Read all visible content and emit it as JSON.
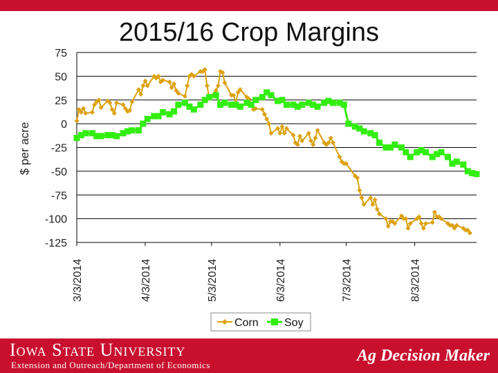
{
  "chart_data": {
    "type": "line",
    "title": "2015/16 Crop Margins",
    "ylabel": "$ per acre",
    "xlabel": "",
    "ylim": [
      -125,
      75
    ],
    "yticks": [
      75,
      50,
      25,
      0,
      -25,
      -50,
      -75,
      -100,
      -125
    ],
    "x_tick_labels": [
      "3/3/2014",
      "4/3/2014",
      "5/3/2014",
      "6/3/2014",
      "7/3/2014",
      "8/3/2014"
    ],
    "x_tick_dates": [
      "2014-03-03",
      "2014-04-03",
      "2014-05-03",
      "2014-06-03",
      "2014-07-03",
      "2014-08-03"
    ],
    "x_range": [
      "2014-03-03",
      "2014-08-31"
    ],
    "grid": "horizontal",
    "legend_position": "bottom",
    "series": [
      {
        "name": "Corn",
        "color": "#dca10f",
        "marker": "diamond",
        "points": [
          [
            "2014-03-03",
            3
          ],
          [
            "2014-03-04",
            15
          ],
          [
            "2014-03-05",
            12
          ],
          [
            "2014-03-06",
            16
          ],
          [
            "2014-03-07",
            11
          ],
          [
            "2014-03-10",
            12
          ],
          [
            "2014-03-11",
            20
          ],
          [
            "2014-03-12",
            23
          ],
          [
            "2014-03-13",
            25
          ],
          [
            "2014-03-14",
            17
          ],
          [
            "2014-03-17",
            24
          ],
          [
            "2014-03-18",
            22
          ],
          [
            "2014-03-19",
            15
          ],
          [
            "2014-03-20",
            11
          ],
          [
            "2014-03-21",
            22
          ],
          [
            "2014-03-24",
            20
          ],
          [
            "2014-03-25",
            16
          ],
          [
            "2014-03-26",
            13
          ],
          [
            "2014-03-27",
            14
          ],
          [
            "2014-03-28",
            23
          ],
          [
            "2014-03-31",
            36
          ],
          [
            "2014-04-01",
            31
          ],
          [
            "2014-04-02",
            40
          ],
          [
            "2014-04-03",
            45
          ],
          [
            "2014-04-04",
            40
          ],
          [
            "2014-04-07",
            50
          ],
          [
            "2014-04-08",
            48
          ],
          [
            "2014-04-09",
            50
          ],
          [
            "2014-04-10",
            44
          ],
          [
            "2014-04-11",
            46
          ],
          [
            "2014-04-14",
            44
          ],
          [
            "2014-04-15",
            38
          ],
          [
            "2014-04-16",
            42
          ],
          [
            "2014-04-17",
            35
          ],
          [
            "2014-04-18",
            32
          ],
          [
            "2014-04-21",
            29
          ],
          [
            "2014-04-22",
            40
          ],
          [
            "2014-04-23",
            50
          ],
          [
            "2014-04-24",
            52
          ],
          [
            "2014-04-25",
            50
          ],
          [
            "2014-04-28",
            55
          ],
          [
            "2014-04-29",
            55
          ],
          [
            "2014-04-30",
            57
          ],
          [
            "2014-05-01",
            40
          ],
          [
            "2014-05-02",
            27
          ],
          [
            "2014-05-05",
            35
          ],
          [
            "2014-05-06",
            40
          ],
          [
            "2014-05-07",
            55
          ],
          [
            "2014-05-08",
            54
          ],
          [
            "2014-05-09",
            43
          ],
          [
            "2014-05-12",
            30
          ],
          [
            "2014-05-13",
            30
          ],
          [
            "2014-05-14",
            22
          ],
          [
            "2014-05-15",
            33
          ],
          [
            "2014-05-16",
            36
          ],
          [
            "2014-05-19",
            28
          ],
          [
            "2014-05-20",
            26
          ],
          [
            "2014-05-21",
            20
          ],
          [
            "2014-05-22",
            15
          ],
          [
            "2014-05-23",
            16
          ],
          [
            "2014-05-26",
            15
          ],
          [
            "2014-05-27",
            10
          ],
          [
            "2014-05-28",
            5
          ],
          [
            "2014-05-29",
            0
          ],
          [
            "2014-05-30",
            -10
          ],
          [
            "2014-06-02",
            -5
          ],
          [
            "2014-06-03",
            -10
          ],
          [
            "2014-06-04",
            -3
          ],
          [
            "2014-06-05",
            -10
          ],
          [
            "2014-06-06",
            -5
          ],
          [
            "2014-06-09",
            -12
          ],
          [
            "2014-06-10",
            -20
          ],
          [
            "2014-06-11",
            -22
          ],
          [
            "2014-06-12",
            -13
          ],
          [
            "2014-06-13",
            -18
          ],
          [
            "2014-06-16",
            -10
          ],
          [
            "2014-06-17",
            -18
          ],
          [
            "2014-06-18",
            -22
          ],
          [
            "2014-06-19",
            -15
          ],
          [
            "2014-06-20",
            -7
          ],
          [
            "2014-06-23",
            -20
          ],
          [
            "2014-06-24",
            -22
          ],
          [
            "2014-06-25",
            -20
          ],
          [
            "2014-06-26",
            -15
          ],
          [
            "2014-06-27",
            -20
          ],
          [
            "2014-06-30",
            -35
          ],
          [
            "2014-07-01",
            -40
          ],
          [
            "2014-07-02",
            -42
          ],
          [
            "2014-07-03",
            -42
          ],
          [
            "2014-07-07",
            -55
          ],
          [
            "2014-07-08",
            -57
          ],
          [
            "2014-07-09",
            -70
          ],
          [
            "2014-07-10",
            -78
          ],
          [
            "2014-07-11",
            -85
          ],
          [
            "2014-07-14",
            -78
          ],
          [
            "2014-07-15",
            -85
          ],
          [
            "2014-07-16",
            -80
          ],
          [
            "2014-07-17",
            -90
          ],
          [
            "2014-07-18",
            -95
          ],
          [
            "2014-07-21",
            -100
          ],
          [
            "2014-07-22",
            -108
          ],
          [
            "2014-07-23",
            -103
          ],
          [
            "2014-07-24",
            -103
          ],
          [
            "2014-07-25",
            -105
          ],
          [
            "2014-07-28",
            -97
          ],
          [
            "2014-07-29",
            -100
          ],
          [
            "2014-07-30",
            -100
          ],
          [
            "2014-07-31",
            -110
          ],
          [
            "2014-08-01",
            -105
          ],
          [
            "2014-08-04",
            -100
          ],
          [
            "2014-08-05",
            -98
          ],
          [
            "2014-08-06",
            -105
          ],
          [
            "2014-08-07",
            -110
          ],
          [
            "2014-08-08",
            -105
          ],
          [
            "2014-08-11",
            -104
          ],
          [
            "2014-08-12",
            -93
          ],
          [
            "2014-08-13",
            -98
          ],
          [
            "2014-08-14",
            -98
          ],
          [
            "2014-08-15",
            -100
          ],
          [
            "2014-08-18",
            -105
          ],
          [
            "2014-08-19",
            -107
          ],
          [
            "2014-08-20",
            -107
          ],
          [
            "2014-08-21",
            -110
          ],
          [
            "2014-08-22",
            -107
          ],
          [
            "2014-08-25",
            -110
          ],
          [
            "2014-08-26",
            -112
          ],
          [
            "2014-08-27",
            -112
          ],
          [
            "2014-08-28",
            -115
          ]
        ]
      },
      {
        "name": "Soy",
        "color": "#33ee11",
        "marker": "square",
        "points": [
          [
            "2014-03-03",
            -15
          ],
          [
            "2014-03-05",
            -12
          ],
          [
            "2014-03-07",
            -10
          ],
          [
            "2014-03-10",
            -10
          ],
          [
            "2014-03-12",
            -13
          ],
          [
            "2014-03-14",
            -13
          ],
          [
            "2014-03-17",
            -12
          ],
          [
            "2014-03-19",
            -12
          ],
          [
            "2014-03-21",
            -13
          ],
          [
            "2014-03-24",
            -10
          ],
          [
            "2014-03-26",
            -8
          ],
          [
            "2014-03-28",
            -7
          ],
          [
            "2014-03-31",
            -7
          ],
          [
            "2014-04-02",
            0
          ],
          [
            "2014-04-04",
            5
          ],
          [
            "2014-04-07",
            8
          ],
          [
            "2014-04-09",
            8
          ],
          [
            "2014-04-11",
            12
          ],
          [
            "2014-04-14",
            10
          ],
          [
            "2014-04-16",
            13
          ],
          [
            "2014-04-18",
            20
          ],
          [
            "2014-04-21",
            22
          ],
          [
            "2014-04-23",
            18
          ],
          [
            "2014-04-25",
            15
          ],
          [
            "2014-04-28",
            20
          ],
          [
            "2014-04-30",
            25
          ],
          [
            "2014-05-02",
            28
          ],
          [
            "2014-05-05",
            30
          ],
          [
            "2014-05-07",
            20
          ],
          [
            "2014-05-09",
            22
          ],
          [
            "2014-05-12",
            20
          ],
          [
            "2014-05-14",
            20
          ],
          [
            "2014-05-16",
            18
          ],
          [
            "2014-05-19",
            22
          ],
          [
            "2014-05-21",
            20
          ],
          [
            "2014-05-23",
            25
          ],
          [
            "2014-05-26",
            28
          ],
          [
            "2014-05-28",
            33
          ],
          [
            "2014-05-30",
            30
          ],
          [
            "2014-06-02",
            24
          ],
          [
            "2014-06-04",
            25
          ],
          [
            "2014-06-06",
            20
          ],
          [
            "2014-06-09",
            20
          ],
          [
            "2014-06-11",
            18
          ],
          [
            "2014-06-13",
            20
          ],
          [
            "2014-06-16",
            22
          ],
          [
            "2014-06-18",
            20
          ],
          [
            "2014-06-20",
            18
          ],
          [
            "2014-06-23",
            22
          ],
          [
            "2014-06-25",
            24
          ],
          [
            "2014-06-27",
            22
          ],
          [
            "2014-06-30",
            22
          ],
          [
            "2014-07-02",
            20
          ],
          [
            "2014-07-04",
            0
          ],
          [
            "2014-07-07",
            -3
          ],
          [
            "2014-07-09",
            -5
          ],
          [
            "2014-07-11",
            -8
          ],
          [
            "2014-07-14",
            -10
          ],
          [
            "2014-07-16",
            -12
          ],
          [
            "2014-07-18",
            -20
          ],
          [
            "2014-07-21",
            -25
          ],
          [
            "2014-07-23",
            -25
          ],
          [
            "2014-07-25",
            -22
          ],
          [
            "2014-07-28",
            -25
          ],
          [
            "2014-07-30",
            -30
          ],
          [
            "2014-08-01",
            -35
          ],
          [
            "2014-08-04",
            -30
          ],
          [
            "2014-08-06",
            -28
          ],
          [
            "2014-08-08",
            -30
          ],
          [
            "2014-08-11",
            -35
          ],
          [
            "2014-08-13",
            -32
          ],
          [
            "2014-08-15",
            -30
          ],
          [
            "2014-08-18",
            -35
          ],
          [
            "2014-08-20",
            -42
          ],
          [
            "2014-08-22",
            -40
          ],
          [
            "2014-08-25",
            -43
          ],
          [
            "2014-08-27",
            -50
          ],
          [
            "2014-08-29",
            -52
          ],
          [
            "2014-08-31",
            -53
          ]
        ]
      }
    ]
  },
  "footer": {
    "university": "Iowa State University",
    "subtitle": "Extension and Outreach/Department of Economics",
    "brand": "Ag Decision Maker"
  }
}
